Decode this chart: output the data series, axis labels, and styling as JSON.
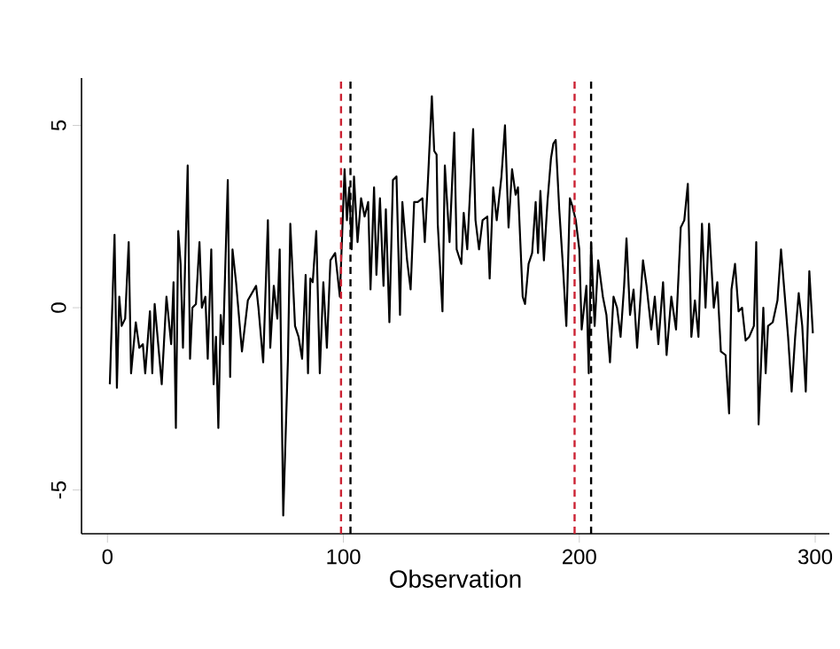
{
  "chart_data": {
    "type": "line",
    "xlabel": "Observation",
    "xlim": [
      -11,
      306
    ],
    "ylim": [
      -6.2,
      6.3
    ],
    "xticks": [
      0,
      100,
      200,
      300
    ],
    "yticks": [
      -5,
      0,
      5
    ],
    "grid": false,
    "marker": "none",
    "line_style": "solid",
    "series": [
      {
        "color": "#000000",
        "x": [
          1,
          3,
          4,
          5,
          6,
          7.5,
          9,
          10,
          12,
          13.5,
          15,
          16,
          18,
          19,
          20,
          23,
          25,
          27,
          28,
          29,
          30,
          31,
          32,
          34,
          35,
          36,
          37.5,
          39,
          40,
          41.5,
          42.5,
          44,
          45,
          46,
          47,
          48,
          49,
          51,
          52,
          53,
          54.5,
          57,
          59.5,
          63,
          64,
          66,
          68,
          69,
          70.5,
          72,
          73,
          74.5,
          76.5,
          77.5,
          79.5,
          81,
          82.5,
          84,
          85,
          86,
          87,
          88.5,
          90,
          91.5,
          93,
          94.5,
          96.5,
          98.5,
          100.5,
          101.5,
          102.5,
          103.5,
          104.5,
          106,
          107.5,
          109,
          110.5,
          111.5,
          113,
          114,
          115.5,
          117,
          118,
          119.5,
          121,
          122.5,
          124,
          125,
          127,
          128.5,
          130,
          131.5,
          133.5,
          134.5,
          136,
          137.5,
          138.5,
          139.5,
          140,
          142,
          143,
          145,
          147,
          148,
          150,
          151,
          152.5,
          155,
          156,
          157.5,
          159,
          161,
          162,
          163.5,
          165,
          167,
          168.5,
          170,
          171.5,
          173,
          174,
          176,
          177,
          178.5,
          180,
          181.5,
          182.5,
          183.5,
          185,
          186.5,
          188,
          189,
          190,
          191.5,
          193,
          194.5,
          196,
          197,
          198.5,
          200,
          201,
          203,
          204,
          205,
          206.5,
          208,
          210,
          211.5,
          213,
          214.5,
          216,
          217.5,
          219,
          220,
          221.5,
          223,
          224.5,
          227,
          228.5,
          230.5,
          232,
          233.5,
          235.5,
          237,
          239,
          241,
          243,
          244.5,
          246,
          247.5,
          249,
          250.5,
          252,
          253.5,
          255,
          257,
          258.5,
          260,
          262,
          263.5,
          264.5,
          266,
          267.5,
          269,
          270.5,
          272,
          274,
          275,
          276,
          278,
          279,
          280,
          282,
          284,
          285.5,
          287,
          288.5,
          290,
          291.5,
          293,
          294.5,
          296,
          297.5,
          299
        ],
        "values": [
          -2.1,
          2.0,
          -2.2,
          0.3,
          -0.5,
          -0.3,
          1.8,
          -1.8,
          -0.4,
          -1.1,
          -1.0,
          -1.8,
          -0.1,
          -1.8,
          0.1,
          -2.1,
          0.3,
          -1.0,
          0.7,
          -3.3,
          2.1,
          1.2,
          -1.1,
          3.9,
          -1.4,
          0.0,
          0.1,
          1.8,
          0.0,
          0.3,
          -1.4,
          1.6,
          -2.1,
          -0.8,
          -3.3,
          -0.2,
          -1.0,
          3.5,
          -1.9,
          1.6,
          0.7,
          -1.2,
          0.2,
          0.6,
          0.0,
          -1.5,
          2.4,
          -1.1,
          0.6,
          -0.3,
          1.6,
          -5.7,
          -1.4,
          2.3,
          -0.5,
          -0.8,
          -1.4,
          0.9,
          -1.8,
          0.8,
          0.7,
          2.1,
          -1.8,
          0.7,
          -1.1,
          1.3,
          1.5,
          0.3,
          3.8,
          2.4,
          3.3,
          1.6,
          3.6,
          1.8,
          3.0,
          2.5,
          2.9,
          0.5,
          3.3,
          0.9,
          3.0,
          0.6,
          2.7,
          -0.4,
          3.5,
          3.6,
          -0.2,
          2.9,
          1.3,
          0.5,
          2.9,
          2.9,
          3.0,
          1.8,
          3.7,
          5.8,
          4.3,
          4.2,
          2.3,
          -0.1,
          3.9,
          1.8,
          4.8,
          1.6,
          1.2,
          2.6,
          1.6,
          4.9,
          2.4,
          1.6,
          2.4,
          2.5,
          0.8,
          3.3,
          2.4,
          3.6,
          5.0,
          2.2,
          3.8,
          3.1,
          3.3,
          0.3,
          0.1,
          1.2,
          1.5,
          2.9,
          1.5,
          3.2,
          1.3,
          2.9,
          4.1,
          4.5,
          4.6,
          2.7,
          1.2,
          -0.5,
          3.0,
          2.8,
          2.4,
          1.6,
          -0.6,
          0.6,
          -1.8,
          1.8,
          -0.5,
          1.3,
          0.3,
          -0.2,
          -1.5,
          0.3,
          0.0,
          -0.8,
          0.6,
          1.9,
          -0.2,
          0.5,
          -1.1,
          1.3,
          0.6,
          -0.6,
          0.3,
          -1.0,
          0.7,
          -1.3,
          0.3,
          -0.6,
          2.2,
          2.4,
          3.4,
          -0.8,
          0.2,
          -0.8,
          2.3,
          0.0,
          2.3,
          0.0,
          0.7,
          -1.2,
          -1.3,
          -2.9,
          0.5,
          1.2,
          -0.1,
          0.0,
          -0.9,
          -0.8,
          -0.5,
          1.8,
          -3.2,
          0.0,
          -1.8,
          -0.5,
          -0.4,
          0.2,
          1.6,
          0.4,
          -0.8,
          -2.3,
          -0.8,
          0.4,
          -0.5,
          -2.3,
          1.0,
          -0.7
        ]
      }
    ],
    "ref_lines": [
      {
        "axis": "x",
        "value": 99,
        "color": "#cc2233",
        "line_style": "dashed"
      },
      {
        "axis": "x",
        "value": 103,
        "color": "#000000",
        "line_style": "dashed"
      },
      {
        "axis": "x",
        "value": 198,
        "color": "#cc2233",
        "line_style": "dashed"
      },
      {
        "axis": "x",
        "value": 205,
        "color": "#000000",
        "line_style": "dashed"
      }
    ]
  }
}
